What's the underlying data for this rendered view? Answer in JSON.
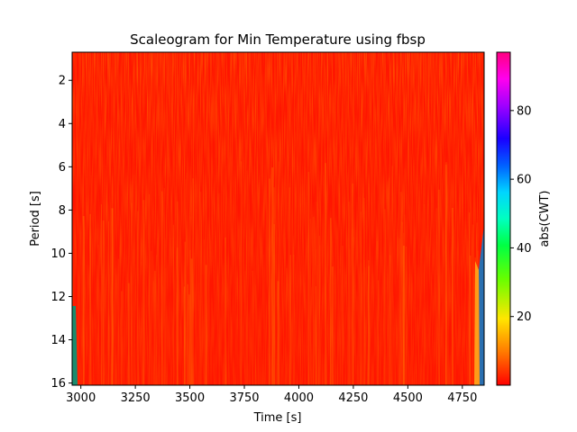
{
  "chart_data": {
    "type": "heatmap",
    "title": "Scaleogram for Min Temperature using fbsp",
    "xlabel": "Time [s]",
    "ylabel": "Period [s]",
    "colorbar_label": "abs(CWT)",
    "colormap": "gist_rainbow_r",
    "xlim": [
      2960,
      4850
    ],
    "ylim": [
      16.1,
      0.7
    ],
    "y_inverted": true,
    "x_ticks": [
      3000,
      3250,
      3500,
      3750,
      4000,
      4250,
      4500,
      4750
    ],
    "x_tick_labels": [
      "3000",
      "3250",
      "3500",
      "3750",
      "4000",
      "4250",
      "4500",
      "4750"
    ],
    "y_ticks": [
      2,
      4,
      6,
      8,
      10,
      12,
      14,
      16
    ],
    "y_tick_labels": [
      "2",
      "4",
      "6",
      "8",
      "10",
      "12",
      "14",
      "16"
    ],
    "colorbar_range": [
      0,
      97
    ],
    "colorbar_ticks": [
      20,
      40,
      60,
      80
    ],
    "colorbar_tick_labels": [
      "20",
      "40",
      "60",
      "80"
    ],
    "dominant_value_range": [
      0,
      8
    ],
    "grid": false
  }
}
